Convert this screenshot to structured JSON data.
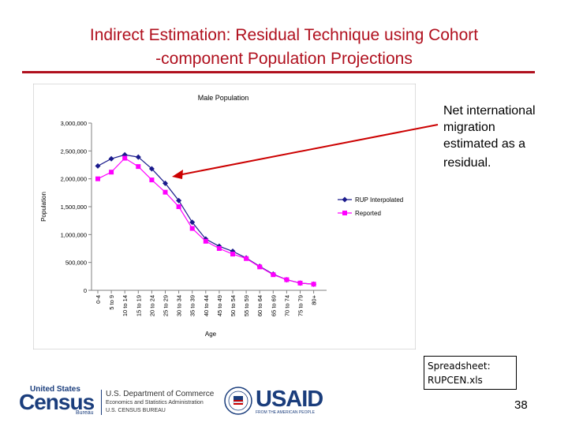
{
  "slide": {
    "title_line1": "Indirect Estimation:  Residual Technique using   Cohort",
    "title_line2": "-component Population Projections",
    "annotation_line1": "Net international",
    "annotation_line2": "migration",
    "annotation_line3": "estimated as a",
    "annotation_line4": "residual.",
    "spreadsheet_label": "Spreadsheet:",
    "spreadsheet_file": "RUPCEN.xls",
    "page_number": "38",
    "colors": {
      "title": "#b0101e",
      "series1": "#1a1a8c",
      "series2": "#ff00ff",
      "arrow": "#cc0000"
    }
  },
  "footer": {
    "census_small": "United States",
    "census_big": "Census",
    "census_bureau": "Bureau",
    "doc_line1": "U.S. Department of Commerce",
    "doc_line2": "Economics and Statistics Administration",
    "doc_line3": "U.S. CENSUS BUREAU",
    "usaid_name": "USAID",
    "usaid_tagline": "FROM THE AMERICAN PEOPLE"
  },
  "chart_data": {
    "type": "line",
    "title": "Male Population",
    "xlabel": "Age",
    "ylabel": "Population",
    "categories": [
      "0-4",
      "5 to 9",
      "10 to 14",
      "15 to 19",
      "20 to 24",
      "25 to 29",
      "30 to 34",
      "35 to 39",
      "40 to 44",
      "45 to 49",
      "50 to 54",
      "55 to 59",
      "60 to 64",
      "65 to 69",
      "70 to 74",
      "75 to 79",
      "80+"
    ],
    "yticks": [
      0,
      500000,
      1000000,
      1500000,
      2000000,
      2500000,
      3000000
    ],
    "ytick_labels": [
      "0",
      "500,000",
      "1,000,000",
      "1,500,000",
      "2,000,000",
      "2,500,000",
      "3,000,000"
    ],
    "ylim": [
      0,
      3000000
    ],
    "grid": false,
    "legend": "right",
    "series": [
      {
        "name": "RUP Interpolated",
        "marker": "diamond",
        "values": [
          2230000,
          2360000,
          2430000,
          2390000,
          2180000,
          1920000,
          1610000,
          1220000,
          920000,
          790000,
          700000,
          580000,
          430000,
          290000,
          190000,
          130000,
          110000
        ]
      },
      {
        "name": "Reported",
        "marker": "square",
        "values": [
          2000000,
          2120000,
          2370000,
          2220000,
          1980000,
          1760000,
          1500000,
          1110000,
          880000,
          750000,
          650000,
          570000,
          420000,
          280000,
          190000,
          130000,
          110000
        ]
      }
    ]
  }
}
